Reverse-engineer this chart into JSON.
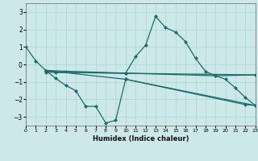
{
  "xlabel": "Humidex (Indice chaleur)",
  "bg_color": "#cce8e8",
  "line_color": "#1a6b6b",
  "xlim": [
    0,
    23
  ],
  "ylim": [
    -3.5,
    3.5
  ],
  "xticks": [
    0,
    1,
    2,
    3,
    4,
    5,
    6,
    7,
    8,
    9,
    10,
    11,
    12,
    13,
    14,
    15,
    16,
    17,
    18,
    19,
    20,
    21,
    22,
    23
  ],
  "yticks": [
    -3,
    -2,
    -1,
    0,
    1,
    2,
    3
  ],
  "grid_color": "#aad4d4",
  "line1_x": [
    0,
    1,
    2,
    3,
    10,
    11,
    12,
    13,
    14,
    15,
    16,
    17,
    18,
    19,
    20,
    21,
    22,
    23
  ],
  "line1_y": [
    1.0,
    0.2,
    -0.35,
    -0.45,
    -0.5,
    0.45,
    1.1,
    2.75,
    2.1,
    1.85,
    1.3,
    0.35,
    -0.4,
    -0.65,
    -0.85,
    -1.35,
    -1.9,
    -2.35
  ],
  "line2_x": [
    2,
    3,
    4,
    5,
    6,
    7,
    8,
    9,
    10,
    22,
    23
  ],
  "line2_y": [
    -0.35,
    -0.8,
    -1.2,
    -1.5,
    -2.4,
    -2.4,
    -3.35,
    -3.2,
    -0.85,
    -2.3,
    -2.35
  ],
  "line3_x": [
    2,
    10,
    19,
    23
  ],
  "line3_y": [
    -0.35,
    -0.5,
    -0.65,
    -0.6
  ],
  "line4_x": [
    2,
    10,
    23
  ],
  "line4_y": [
    -0.35,
    -0.85,
    -2.35
  ],
  "line5_x": [
    2,
    23
  ],
  "line5_y": [
    -0.45,
    -0.6
  ]
}
